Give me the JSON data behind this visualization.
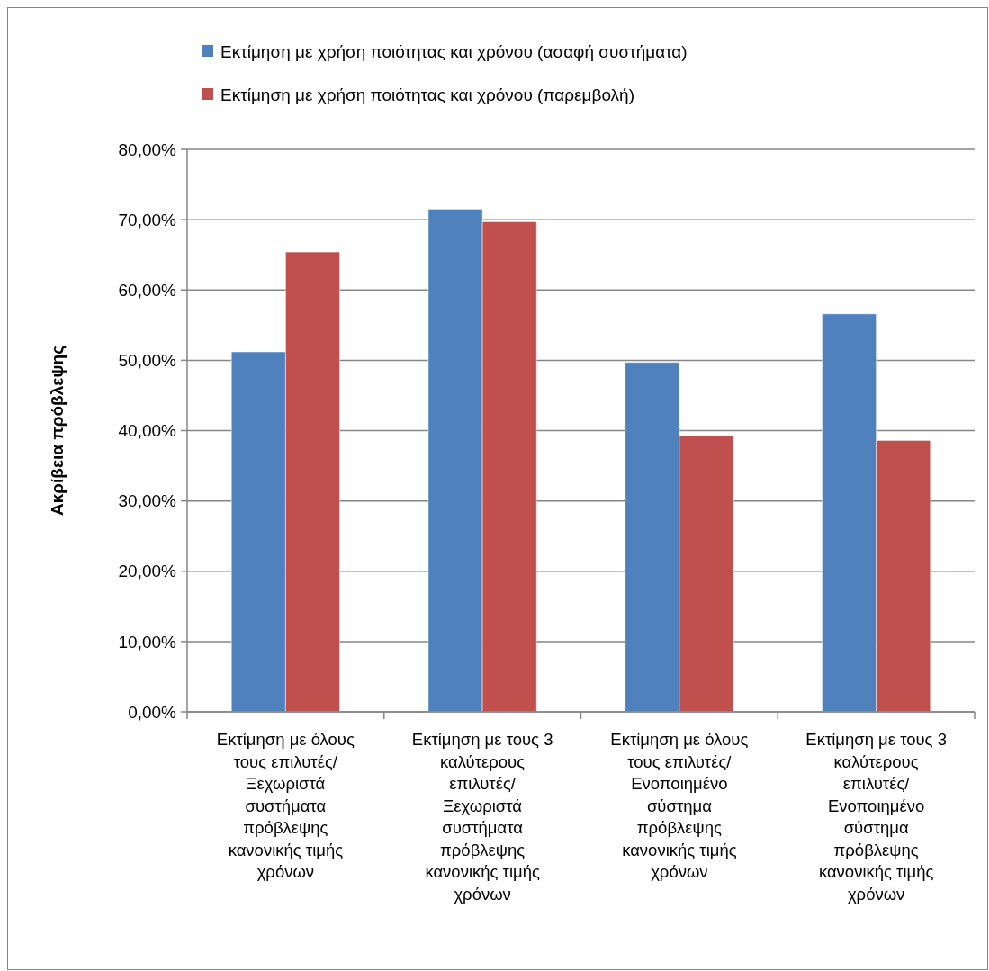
{
  "chart_data": {
    "type": "bar",
    "ylabel": "Ακρίβεια πρόβλεψης",
    "categories": [
      "Εκτίμηση με όλους\nτους επιλυτές/\nΞεχωριστά\nσυστήματα\nπρόβλεψης\nκανονικής τιμής\nχρόνων",
      "Εκτίμηση με τους 3\nκαλύτερους\nεπιλυτές/\nΞεχωριστά\nσυστήματα\nπρόβλεψης\nκανονικής τιμής\nχρόνων",
      "Εκτίμηση με όλους\nτους επιλυτές/\nΕνοποιημένο\nσύστημα\nπρόβλεψης\nκανονικής τιμής\nχρόνων",
      "Εκτίμηση με τους 3\nκαλύτερους\nεπιλυτές/\nΕνοποιημένο\nσύστημα\nπρόβλεψης\nκανονικής τιμής\nχρόνων"
    ],
    "series": [
      {
        "name": "Εκτίμηση με χρήση ποιότητας και χρόνου (ασαφή συστήματα)",
        "color": "#4f81bd",
        "values": [
          51.2,
          71.5,
          49.7,
          56.6
        ]
      },
      {
        "name": "Εκτίμηση με χρήση ποιότητας και χρόνου (παρεμβολή)",
        "color": "#c0504d",
        "values": [
          65.4,
          69.7,
          39.3,
          38.6
        ]
      }
    ],
    "ylim": [
      0,
      80
    ],
    "yticks": [
      {
        "value": 0,
        "label": "0,00%"
      },
      {
        "value": 10,
        "label": "10,00%"
      },
      {
        "value": 20,
        "label": "20,00%"
      },
      {
        "value": 30,
        "label": "30,00%"
      },
      {
        "value": 40,
        "label": "40,00%"
      },
      {
        "value": 50,
        "label": "50,00%"
      },
      {
        "value": 60,
        "label": "60,00%"
      },
      {
        "value": 70,
        "label": "70,00%"
      },
      {
        "value": 80,
        "label": "80,00%"
      }
    ],
    "grid": "y",
    "legend": "top"
  }
}
